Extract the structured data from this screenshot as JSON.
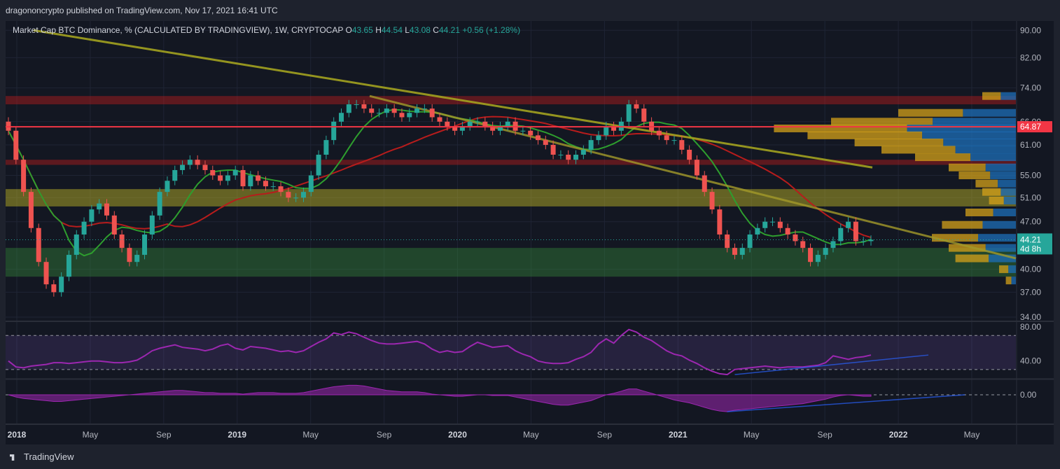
{
  "header": {
    "published": "dragononcrypto published on TradingView.com, Nov 17, 2021 16:41 UTC"
  },
  "legend": {
    "symbol": "Market Cap BTC Dominance, % (CALCULATED BY TRADINGVIEW), 1W, CRYPTOCAP",
    "o_label": "O",
    "o": "43.65",
    "h_label": "H",
    "h": "44.54",
    "l_label": "L",
    "l": "43.08",
    "c_label": "C",
    "c": "44.21",
    "change": "+0.56 (+1.28%)"
  },
  "footer": {
    "brand": "TradingView"
  },
  "colors": {
    "up": "#26a69a",
    "down": "#ef5350",
    "ma_fast": "#2e9e2e",
    "ma_slow": "#b71c1c",
    "ma_long": "#a3a21f",
    "rsi": "#9c27b0",
    "hline": "#f23645"
  },
  "chart_data": [
    {
      "type": "candlestick",
      "timeframe": "1W",
      "ylim": [
        34,
        92
      ],
      "y_scale": "log",
      "y_ticks": [
        "90.00",
        "82.00",
        "74.00",
        "66.00",
        "61.00",
        "55.00",
        "51.00",
        "47.00",
        "40.00",
        "37.00",
        "34.00"
      ],
      "x_ticks": [
        {
          "label": "2018",
          "bold": true
        },
        {
          "label": "May",
          "bold": false
        },
        {
          "label": "Sep",
          "bold": false
        },
        {
          "label": "2019",
          "bold": true
        },
        {
          "label": "May",
          "bold": false
        },
        {
          "label": "Sep",
          "bold": false
        },
        {
          "label": "2020",
          "bold": true
        },
        {
          "label": "May",
          "bold": false
        },
        {
          "label": "Sep",
          "bold": false
        },
        {
          "label": "2021",
          "bold": true
        },
        {
          "label": "May",
          "bold": false
        },
        {
          "label": "Sep",
          "bold": false
        },
        {
          "label": "2022",
          "bold": true
        },
        {
          "label": "May",
          "bold": false
        }
      ],
      "closes": [
        64,
        58,
        52,
        46,
        41,
        38,
        37,
        39,
        42,
        45,
        47,
        49,
        50,
        48,
        45,
        43,
        41,
        42,
        45,
        48,
        52,
        54,
        56,
        57,
        58,
        57,
        56,
        55,
        54,
        55,
        56,
        53,
        55,
        54,
        53,
        53,
        52,
        51,
        51,
        52,
        55,
        59,
        62,
        66,
        68,
        70,
        70,
        69,
        68,
        68,
        69,
        68,
        67,
        68,
        69,
        69,
        67,
        66,
        65,
        64,
        65,
        66,
        66,
        65,
        64,
        65,
        66,
        64,
        64,
        63,
        62,
        61,
        59,
        59,
        58,
        59,
        60,
        62,
        63,
        65,
        64,
        66,
        70,
        69,
        66,
        64,
        63,
        62,
        62,
        60,
        58,
        55,
        52,
        49,
        45,
        43,
        42,
        43,
        45,
        46,
        47,
        47,
        46,
        45,
        44,
        43,
        41,
        42,
        43,
        44,
        46,
        47,
        44,
        44,
        44.21
      ],
      "price_line": {
        "value": "64.87"
      },
      "last_price": {
        "value": "44.21",
        "countdown": "4d 8h"
      },
      "zones": [
        {
          "name": "red-resistance",
          "top": 72,
          "bottom": 70
        },
        {
          "name": "red-support",
          "top": 58,
          "bottom": 57
        },
        {
          "name": "yellow-zone",
          "top": 52.5,
          "bottom": 49.5
        },
        {
          "name": "green-zone",
          "top": 43,
          "bottom": 39
        }
      ]
    },
    {
      "type": "line",
      "name_visible": false,
      "ylim": [
        20,
        85
      ],
      "y_ticks": [
        "80.00",
        "40.00"
      ],
      "bands": [
        70,
        30
      ],
      "values": [
        40,
        33,
        32,
        34,
        35,
        36,
        38,
        38,
        37,
        38,
        39,
        40,
        40,
        39,
        38,
        38,
        39,
        41,
        46,
        52,
        55,
        57,
        59,
        56,
        55,
        54,
        52,
        54,
        58,
        60,
        55,
        53,
        57,
        56,
        55,
        53,
        51,
        52,
        50,
        52,
        57,
        62,
        66,
        73,
        71,
        74,
        72,
        68,
        64,
        61,
        60,
        60,
        61,
        62,
        63,
        60,
        54,
        50,
        52,
        50,
        51,
        57,
        62,
        59,
        56,
        57,
        58,
        52,
        48,
        45,
        40,
        38,
        37,
        37,
        38,
        42,
        45,
        50,
        60,
        66,
        61,
        70,
        77,
        74,
        68,
        64,
        58,
        52,
        48,
        46,
        41,
        37,
        32,
        28,
        25,
        24,
        30,
        31,
        32,
        33,
        34,
        33,
        32,
        33,
        33,
        33,
        34,
        35,
        38,
        46,
        44,
        42,
        44,
        45,
        47
      ]
    },
    {
      "type": "area",
      "name_visible": false,
      "ylim": [
        -40,
        20
      ],
      "y_ticks": [
        "0.00"
      ],
      "values": [
        0,
        -3,
        -5,
        -6,
        -7,
        -8,
        -9,
        -9,
        -8,
        -7,
        -6,
        -5,
        -4,
        -3,
        -2,
        -1,
        0,
        1,
        2,
        3,
        4,
        5,
        6,
        6,
        5,
        4,
        3,
        3,
        2,
        2,
        2,
        1,
        2,
        3,
        3,
        3,
        2,
        2,
        2,
        3,
        5,
        7,
        9,
        11,
        12,
        13,
        13,
        12,
        10,
        8,
        6,
        5,
        4,
        4,
        4,
        3,
        1,
        0,
        -1,
        -2,
        -2,
        -1,
        0,
        0,
        -1,
        -1,
        -1,
        -3,
        -5,
        -7,
        -9,
        -11,
        -13,
        -14,
        -14,
        -12,
        -10,
        -8,
        -4,
        0,
        2,
        5,
        8,
        8,
        5,
        2,
        -1,
        -4,
        -7,
        -9,
        -11,
        -14,
        -17,
        -20,
        -22,
        -23,
        -21,
        -20,
        -19,
        -18,
        -17,
        -16,
        -15,
        -14,
        -13,
        -12,
        -10,
        -8,
        -6,
        -3,
        -1,
        0,
        -1,
        -2,
        -2
      ]
    }
  ]
}
